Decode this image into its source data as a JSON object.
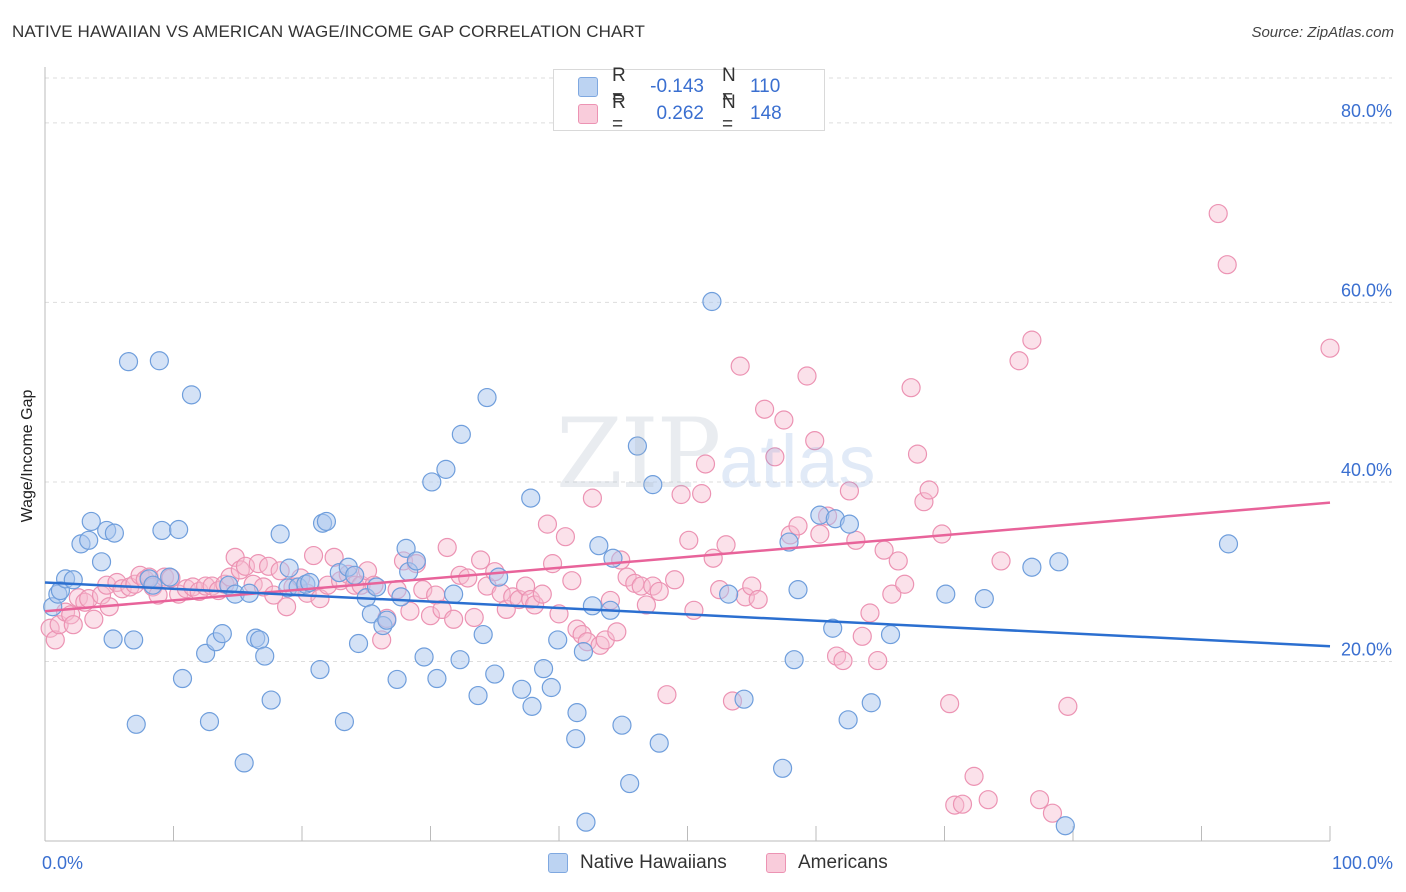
{
  "title": "NATIVE HAWAIIAN VS AMERICAN WAGE/INCOME GAP CORRELATION CHART",
  "source": "Source: ZipAtlas.com",
  "watermark": {
    "zip": "ZIP",
    "atlas": "atlas"
  },
  "legend_top": {
    "rows": [
      {
        "r_label": "R =",
        "r_value": "-0.143",
        "n_label": "N =",
        "n_value": "110"
      },
      {
        "r_label": "R =",
        "r_value": "0.262",
        "n_label": "N =",
        "n_value": "148"
      }
    ]
  },
  "legend_bottom": {
    "items": [
      "Native Hawaiians",
      "Americans"
    ]
  },
  "colors": {
    "blue_fill": "#a9c6ee",
    "blue_stroke": "#6f9edc",
    "blue_line": "#2b6fd0",
    "pink_fill": "#f6bcd0",
    "pink_stroke": "#ec93b3",
    "pink_line": "#e8639a",
    "tick_label": "#3a6fd0",
    "grid": "#dddddd"
  },
  "chart_data": {
    "type": "scatter",
    "title": "NATIVE HAWAIIAN VS AMERICAN WAGE/INCOME GAP CORRELATION CHART",
    "xlabel": "",
    "ylabel": "Wage/Income Gap",
    "xlim": [
      0,
      100
    ],
    "ylim": [
      0,
      85
    ],
    "x_tick_labels": [
      "0.0%",
      "100.0%"
    ],
    "y_ticks": [
      20,
      40,
      60,
      80
    ],
    "y_tick_labels": [
      "20.0%",
      "40.0%",
      "60.0%",
      "80.0%"
    ],
    "grid": true,
    "series": [
      {
        "name": "Native Hawaiians",
        "color": "#a9c6ee",
        "trend": {
          "x": [
            0,
            100
          ],
          "y": [
            28.8,
            21.7
          ]
        },
        "points": [
          [
            0.6,
            26.1
          ],
          [
            1.0,
            27.5
          ],
          [
            1.2,
            27.9
          ],
          [
            1.6,
            29.2
          ],
          [
            2.2,
            29.1
          ],
          [
            2.8,
            33.1
          ],
          [
            3.4,
            33.5
          ],
          [
            3.6,
            35.6
          ],
          [
            4.4,
            31.1
          ],
          [
            4.8,
            34.6
          ],
          [
            5.4,
            34.3
          ],
          [
            5.3,
            22.5
          ],
          [
            6.5,
            53.4
          ],
          [
            6.9,
            22.4
          ],
          [
            7.1,
            13.0
          ],
          [
            8.1,
            29.2
          ],
          [
            8.4,
            28.5
          ],
          [
            8.9,
            53.5
          ],
          [
            9.1,
            34.6
          ],
          [
            9.7,
            29.4
          ],
          [
            10.4,
            34.7
          ],
          [
            10.7,
            18.1
          ],
          [
            11.4,
            49.7
          ],
          [
            12.5,
            20.9
          ],
          [
            12.8,
            13.3
          ],
          [
            13.3,
            22.2
          ],
          [
            13.8,
            23.1
          ],
          [
            14.3,
            28.5
          ],
          [
            14.8,
            27.5
          ],
          [
            15.5,
            8.7
          ],
          [
            15.9,
            27.6
          ],
          [
            16.4,
            22.6
          ],
          [
            16.7,
            22.4
          ],
          [
            17.1,
            20.6
          ],
          [
            17.6,
            15.7
          ],
          [
            18.3,
            34.2
          ],
          [
            18.9,
            28.2
          ],
          [
            19.0,
            30.4
          ],
          [
            19.7,
            28.3
          ],
          [
            20.3,
            28.6
          ],
          [
            20.6,
            28.8
          ],
          [
            21.4,
            19.1
          ],
          [
            21.6,
            35.4
          ],
          [
            21.9,
            35.6
          ],
          [
            22.9,
            29.9
          ],
          [
            23.3,
            13.3
          ],
          [
            23.6,
            30.5
          ],
          [
            24.1,
            29.6
          ],
          [
            24.4,
            22.0
          ],
          [
            25.0,
            27.1
          ],
          [
            25.4,
            25.3
          ],
          [
            25.8,
            28.3
          ],
          [
            26.3,
            24.0
          ],
          [
            26.6,
            24.6
          ],
          [
            27.4,
            18.0
          ],
          [
            27.7,
            27.2
          ],
          [
            28.1,
            32.6
          ],
          [
            28.3,
            30.0
          ],
          [
            28.9,
            31.2
          ],
          [
            29.5,
            20.5
          ],
          [
            30.1,
            40.0
          ],
          [
            30.5,
            18.1
          ],
          [
            31.2,
            41.4
          ],
          [
            31.8,
            27.5
          ],
          [
            32.3,
            20.2
          ],
          [
            32.4,
            45.3
          ],
          [
            33.7,
            16.2
          ],
          [
            34.1,
            23.0
          ],
          [
            34.4,
            49.4
          ],
          [
            35.0,
            18.6
          ],
          [
            35.3,
            29.4
          ],
          [
            37.1,
            16.9
          ],
          [
            37.9,
            15.0
          ],
          [
            37.8,
            38.2
          ],
          [
            38.8,
            19.2
          ],
          [
            39.4,
            17.1
          ],
          [
            39.9,
            22.4
          ],
          [
            41.3,
            11.4
          ],
          [
            41.4,
            14.3
          ],
          [
            41.9,
            21.1
          ],
          [
            42.1,
            2.1
          ],
          [
            42.6,
            26.2
          ],
          [
            43.1,
            32.9
          ],
          [
            44.0,
            25.7
          ],
          [
            44.2,
            31.5
          ],
          [
            44.9,
            12.9
          ],
          [
            45.5,
            6.4
          ],
          [
            46.1,
            44.0
          ],
          [
            47.3,
            39.7
          ],
          [
            47.8,
            10.9
          ],
          [
            51.9,
            60.1
          ],
          [
            53.2,
            27.5
          ],
          [
            54.4,
            15.8
          ],
          [
            57.4,
            8.1
          ],
          [
            57.9,
            33.3
          ],
          [
            58.3,
            20.2
          ],
          [
            58.6,
            28.0
          ],
          [
            60.3,
            36.3
          ],
          [
            61.3,
            23.7
          ],
          [
            61.5,
            35.9
          ],
          [
            62.5,
            13.5
          ],
          [
            62.6,
            35.3
          ],
          [
            64.3,
            15.4
          ],
          [
            65.8,
            23.0
          ],
          [
            70.1,
            27.5
          ],
          [
            73.1,
            27.0
          ],
          [
            76.8,
            30.5
          ],
          [
            78.9,
            31.1
          ],
          [
            79.4,
            1.7
          ],
          [
            92.1,
            33.1
          ]
        ]
      },
      {
        "name": "Americans",
        "color": "#f6bcd0",
        "trend": {
          "x": [
            0,
            100
          ],
          "y": [
            25.6,
            37.7
          ]
        },
        "points": [
          [
            0.4,
            23.7
          ],
          [
            0.8,
            22.4
          ],
          [
            1.1,
            24.1
          ],
          [
            1.6,
            25.5
          ],
          [
            2.0,
            25.2
          ],
          [
            2.2,
            24.1
          ],
          [
            2.6,
            27.1
          ],
          [
            3.1,
            26.6
          ],
          [
            3.4,
            27.0
          ],
          [
            3.8,
            24.7
          ],
          [
            4.4,
            27.4
          ],
          [
            4.8,
            28.5
          ],
          [
            5.0,
            26.1
          ],
          [
            5.6,
            28.8
          ],
          [
            6.0,
            28.1
          ],
          [
            6.6,
            28.3
          ],
          [
            7.0,
            28.6
          ],
          [
            7.4,
            29.6
          ],
          [
            7.8,
            29.1
          ],
          [
            8.1,
            29.4
          ],
          [
            8.4,
            28.3
          ],
          [
            8.8,
            27.4
          ],
          [
            9.3,
            29.4
          ],
          [
            9.8,
            29.3
          ],
          [
            10.4,
            27.5
          ],
          [
            11.0,
            28.1
          ],
          [
            11.5,
            28.3
          ],
          [
            12.0,
            27.8
          ],
          [
            12.5,
            28.4
          ],
          [
            13.0,
            28.4
          ],
          [
            13.5,
            27.9
          ],
          [
            14.0,
            28.6
          ],
          [
            14.4,
            29.4
          ],
          [
            14.8,
            31.6
          ],
          [
            15.2,
            30.2
          ],
          [
            15.6,
            30.6
          ],
          [
            16.2,
            28.6
          ],
          [
            16.6,
            30.9
          ],
          [
            17.0,
            28.3
          ],
          [
            17.4,
            30.6
          ],
          [
            17.8,
            27.4
          ],
          [
            18.3,
            30.1
          ],
          [
            18.8,
            26.1
          ],
          [
            19.3,
            28.3
          ],
          [
            19.9,
            29.3
          ],
          [
            20.4,
            27.6
          ],
          [
            20.9,
            31.8
          ],
          [
            21.4,
            27.0
          ],
          [
            22.0,
            28.5
          ],
          [
            22.5,
            31.6
          ],
          [
            23.0,
            29.0
          ],
          [
            23.6,
            29.7
          ],
          [
            24.1,
            28.5
          ],
          [
            24.6,
            28.5
          ],
          [
            25.1,
            30.1
          ],
          [
            25.6,
            28.5
          ],
          [
            26.2,
            22.4
          ],
          [
            26.6,
            24.8
          ],
          [
            27.4,
            28.0
          ],
          [
            27.9,
            31.2
          ],
          [
            28.4,
            25.6
          ],
          [
            28.9,
            30.9
          ],
          [
            29.4,
            28.0
          ],
          [
            30.0,
            25.1
          ],
          [
            30.4,
            27.4
          ],
          [
            30.9,
            25.8
          ],
          [
            31.3,
            32.7
          ],
          [
            31.8,
            24.7
          ],
          [
            32.3,
            29.6
          ],
          [
            32.9,
            29.3
          ],
          [
            33.4,
            24.9
          ],
          [
            33.9,
            31.3
          ],
          [
            34.4,
            28.4
          ],
          [
            35.0,
            30.0
          ],
          [
            35.5,
            27.6
          ],
          [
            35.9,
            25.8
          ],
          [
            36.4,
            27.2
          ],
          [
            36.9,
            26.9
          ],
          [
            37.4,
            28.4
          ],
          [
            37.8,
            26.9
          ],
          [
            38.1,
            26.3
          ],
          [
            38.7,
            27.5
          ],
          [
            39.1,
            35.3
          ],
          [
            39.5,
            30.9
          ],
          [
            40.0,
            25.3
          ],
          [
            40.5,
            33.9
          ],
          [
            41.0,
            29.0
          ],
          [
            41.4,
            23.6
          ],
          [
            41.8,
            23.0
          ],
          [
            42.2,
            22.2
          ],
          [
            42.6,
            38.2
          ],
          [
            43.2,
            21.8
          ],
          [
            43.6,
            22.4
          ],
          [
            44.0,
            26.8
          ],
          [
            44.5,
            23.3
          ],
          [
            44.8,
            31.3
          ],
          [
            45.3,
            29.4
          ],
          [
            45.9,
            28.7
          ],
          [
            46.4,
            28.4
          ],
          [
            46.8,
            26.3
          ],
          [
            47.3,
            28.4
          ],
          [
            47.8,
            27.8
          ],
          [
            48.4,
            16.3
          ],
          [
            49.0,
            29.1
          ],
          [
            49.5,
            38.6
          ],
          [
            50.1,
            33.5
          ],
          [
            50.5,
            25.7
          ],
          [
            51.1,
            38.7
          ],
          [
            51.4,
            42.0
          ],
          [
            52.0,
            31.5
          ],
          [
            52.5,
            28.0
          ],
          [
            53.0,
            33.0
          ],
          [
            53.5,
            15.6
          ],
          [
            54.1,
            52.9
          ],
          [
            54.5,
            27.2
          ],
          [
            55.0,
            28.4
          ],
          [
            55.5,
            26.9
          ],
          [
            56.0,
            48.1
          ],
          [
            56.8,
            42.8
          ],
          [
            57.5,
            46.9
          ],
          [
            58.0,
            34.1
          ],
          [
            58.6,
            35.1
          ],
          [
            59.3,
            51.8
          ],
          [
            59.9,
            44.6
          ],
          [
            60.3,
            34.2
          ],
          [
            60.9,
            36.2
          ],
          [
            61.6,
            20.6
          ],
          [
            62.1,
            20.1
          ],
          [
            62.6,
            39.0
          ],
          [
            63.1,
            33.5
          ],
          [
            63.6,
            22.8
          ],
          [
            64.2,
            25.4
          ],
          [
            64.8,
            20.1
          ],
          [
            65.3,
            32.4
          ],
          [
            65.9,
            27.5
          ],
          [
            66.4,
            31.2
          ],
          [
            66.9,
            28.6
          ],
          [
            67.4,
            50.5
          ],
          [
            67.9,
            43.1
          ],
          [
            68.4,
            37.8
          ],
          [
            68.8,
            39.1
          ],
          [
            69.8,
            34.2
          ],
          [
            70.4,
            15.3
          ],
          [
            70.8,
            4.0
          ],
          [
            71.4,
            4.1
          ],
          [
            72.3,
            7.2
          ],
          [
            73.4,
            4.6
          ],
          [
            74.4,
            31.2
          ],
          [
            75.8,
            53.5
          ],
          [
            76.8,
            55.8
          ],
          [
            77.4,
            4.6
          ],
          [
            78.4,
            3.1
          ],
          [
            79.6,
            15.0
          ],
          [
            91.3,
            69.9
          ],
          [
            92.0,
            64.2
          ],
          [
            100.0,
            54.9
          ]
        ]
      }
    ]
  }
}
